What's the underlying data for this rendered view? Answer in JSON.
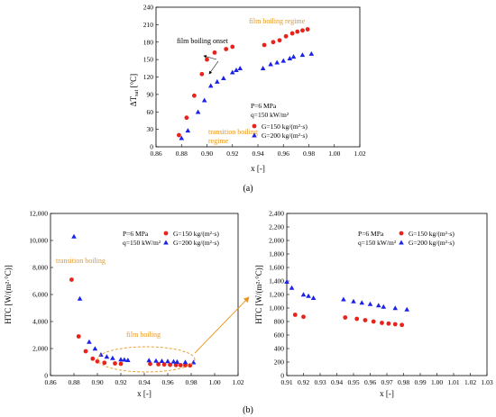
{
  "chart_data": [
    {
      "id": "a",
      "type": "scatter",
      "xlabel": "x [-]",
      "ylabel": "ΔT",
      "ylabel_sub": "sat",
      "ylabel_unit": " [°C]",
      "xlim": [
        0.86,
        1.02
      ],
      "ylim": [
        0,
        240
      ],
      "xticks": [
        "0.86",
        "0.88",
        "0.90",
        "0.92",
        "0.94",
        "0.96",
        "0.98",
        "1.00",
        "1.02"
      ],
      "yticks": [
        "0",
        "30",
        "60",
        "90",
        "120",
        "150",
        "180",
        "210",
        "240"
      ],
      "legend": [
        "P=6 MPa",
        "q=150 kW/m²"
      ],
      "annotations": {
        "film_onset": "film boiling onset",
        "film_regime": "film boiling regime",
        "transition_line1": "transition boiling",
        "transition_line2": "regime"
      },
      "series": [
        {
          "name": "G=150 kg/(m²·s)",
          "color": "#e8231c",
          "marker": "circle",
          "x": [
            0.878,
            0.884,
            0.89,
            0.896,
            0.9,
            0.906,
            0.915,
            0.92,
            0.945,
            0.952,
            0.957,
            0.962,
            0.967,
            0.971,
            0.975,
            0.979
          ],
          "y": [
            20,
            50,
            88,
            125,
            150,
            162,
            168,
            172,
            175,
            180,
            183,
            190,
            195,
            198,
            200,
            202
          ]
        },
        {
          "name": "G=200 kg/(m²·s)",
          "color": "#1c23e8",
          "marker": "triangle",
          "x": [
            0.88,
            0.885,
            0.893,
            0.898,
            0.903,
            0.908,
            0.913,
            0.92,
            0.923,
            0.926,
            0.944,
            0.95,
            0.955,
            0.96,
            0.965,
            0.968,
            0.975,
            0.982
          ],
          "y": [
            15,
            28,
            60,
            80,
            105,
            112,
            118,
            128,
            132,
            135,
            135,
            142,
            145,
            148,
            152,
            155,
            158,
            160
          ]
        }
      ]
    },
    {
      "id": "b-left",
      "type": "scatter",
      "xlabel": "x [-]",
      "ylabel": "HTC [W/(m²·°C)]",
      "xlim": [
        0.86,
        1.02
      ],
      "ylim": [
        0,
        12000
      ],
      "xticks": [
        "0.86",
        "0.88",
        "0.90",
        "0.92",
        "0.94",
        "0.96",
        "0.98",
        "1.00",
        "1.02"
      ],
      "yticks": [
        "0",
        "2,000",
        "4,000",
        "6,000",
        "8,000",
        "10,000",
        "12,000"
      ],
      "legend": [
        "P=6 MPa",
        "q=150 kW/m²"
      ],
      "annotations": {
        "transition": "transition boiling",
        "film": "film boiling"
      },
      "series": [
        {
          "name": "G=150 kg/(m²·s)",
          "color": "#e8231c",
          "marker": "circle",
          "x": [
            0.878,
            0.884,
            0.89,
            0.896,
            0.9,
            0.906,
            0.915,
            0.92,
            0.945,
            0.952,
            0.957,
            0.962,
            0.967,
            0.971,
            0.975,
            0.979
          ],
          "y": [
            7100,
            2900,
            1800,
            1250,
            1050,
            950,
            900,
            870,
            860,
            840,
            820,
            800,
            780,
            770,
            760,
            750
          ]
        },
        {
          "name": "G=200 kg/(m²·s)",
          "color": "#1c23e8",
          "marker": "triangle",
          "x": [
            0.88,
            0.885,
            0.893,
            0.898,
            0.903,
            0.908,
            0.913,
            0.92,
            0.923,
            0.926,
            0.944,
            0.95,
            0.955,
            0.96,
            0.965,
            0.968,
            0.975,
            0.982
          ],
          "y": [
            10300,
            5700,
            2500,
            2000,
            1550,
            1400,
            1300,
            1200,
            1180,
            1150,
            1130,
            1100,
            1080,
            1060,
            1040,
            1020,
            1000,
            980
          ]
        }
      ]
    },
    {
      "id": "b-right",
      "type": "scatter",
      "xlabel": "x [-]",
      "ylabel": "HTC [W/(m²·°C)]",
      "xlim": [
        0.91,
        1.03
      ],
      "ylim": [
        0,
        2400
      ],
      "xticks": [
        "0.91",
        "0.92",
        "0.93",
        "0.94",
        "0.95",
        "0.96",
        "0.97",
        "0.98",
        "0.99",
        "1.00",
        "1.01",
        "1.02",
        "1.03"
      ],
      "yticks": [
        "0",
        "200",
        "400",
        "600",
        "800",
        "1,000",
        "1,200",
        "1,400",
        "1,600",
        "1,800",
        "2,000",
        "2,200",
        "2,400"
      ],
      "legend": [
        "P=6 MPa",
        "q=150 kW/m²"
      ],
      "series": [
        {
          "name": "G=150 kg/(m²·s)",
          "color": "#e8231c",
          "marker": "circle",
          "x": [
            0.915,
            0.92,
            0.945,
            0.952,
            0.957,
            0.962,
            0.967,
            0.971,
            0.975,
            0.979
          ],
          "y": [
            900,
            870,
            860,
            840,
            820,
            800,
            780,
            770,
            760,
            750
          ]
        },
        {
          "name": "G=200 kg/(m²·s)",
          "color": "#1c23e8",
          "marker": "triangle",
          "x": [
            0.91,
            0.913,
            0.92,
            0.923,
            0.926,
            0.944,
            0.95,
            0.955,
            0.96,
            0.965,
            0.968,
            0.975,
            0.982
          ],
          "y": [
            1390,
            1300,
            1200,
            1180,
            1150,
            1130,
            1100,
            1080,
            1060,
            1040,
            1020,
            1000,
            980
          ]
        }
      ]
    }
  ],
  "captions": {
    "a": "(a)",
    "b": "(b)"
  }
}
